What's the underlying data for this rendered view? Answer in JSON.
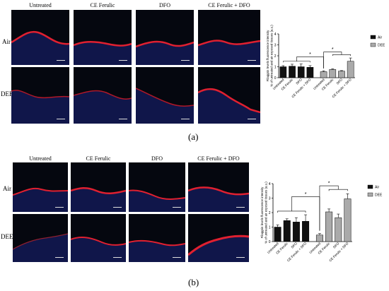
{
  "panels": [
    {
      "label": "(a)",
      "columns": [
        "Untreated",
        "CE Ferulic",
        "DFO",
        "CE Ferulic + DFO"
      ],
      "rows": [
        "Air",
        "DEE"
      ]
    },
    {
      "label": "(b)",
      "columns": [
        "Untreated",
        "CE Ferulic",
        "DFO",
        "CE Ferulic + DFO"
      ],
      "rows": [
        "Air",
        "DEE"
      ]
    }
  ],
  "colors": {
    "air_bar": "#111111",
    "dee_bar": "#aaaaaa",
    "tissue_edge": "#e02030",
    "nuclei": "#2030c0",
    "background": "#05070f"
  },
  "chart_data": [
    {
      "type": "bar",
      "ylabel": "Filaggrin levels fluorescence intensity\n% of untreated and air exposed tissues (a.u.)",
      "ylim": [
        0,
        4
      ],
      "yticks": [
        0,
        1,
        2,
        3,
        4
      ],
      "categories": [
        "Untreated",
        "CE Ferulic",
        "DFO",
        "CE Ferulic + DFO",
        "Untreated",
        "CE Ferulic",
        "DFO",
        "CE Ferulic + DFO"
      ],
      "series": [
        {
          "name": "Air",
          "values": [
            1.0,
            1.05,
            1.0,
            0.95,
            null,
            null,
            null,
            null
          ],
          "errors": [
            0.1,
            0.18,
            0.25,
            0.15,
            null,
            null,
            null,
            null
          ]
        },
        {
          "name": "DEE",
          "values": [
            null,
            null,
            null,
            null,
            0.55,
            0.75,
            0.6,
            1.5
          ],
          "errors": [
            null,
            null,
            null,
            null,
            0.08,
            0.06,
            0.05,
            0.3
          ]
        }
      ],
      "significance": [
        "*",
        "*"
      ],
      "legend": {
        "items": [
          "Air",
          "DEE"
        ],
        "position": "right"
      }
    },
    {
      "type": "bar",
      "ylabel": "Filaggrin levels fluorescence intensity\n% of untreated and air exposed tissues (a.u.)",
      "ylim": [
        0,
        4
      ],
      "yticks": [
        0,
        1,
        2,
        3,
        4
      ],
      "categories": [
        "Untreated",
        "CE Ferulic",
        "DFO",
        "CE Ferulic + DFO",
        "Untreated",
        "CE Ferulic",
        "DFO",
        "CE Ferulic + DFO"
      ],
      "series": [
        {
          "name": "Air",
          "values": [
            1.0,
            1.45,
            1.35,
            1.4,
            null,
            null,
            null,
            null
          ],
          "errors": [
            0.15,
            0.12,
            0.3,
            0.45,
            null,
            null,
            null,
            null
          ]
        },
        {
          "name": "DEE",
          "values": [
            null,
            null,
            null,
            null,
            0.45,
            2.05,
            1.65,
            2.95
          ],
          "errors": [
            null,
            null,
            null,
            null,
            0.1,
            0.2,
            0.25,
            0.35
          ]
        }
      ],
      "significance": [
        "*",
        "*"
      ],
      "legend": {
        "items": [
          "Air",
          "DEE"
        ],
        "position": "right"
      }
    }
  ]
}
